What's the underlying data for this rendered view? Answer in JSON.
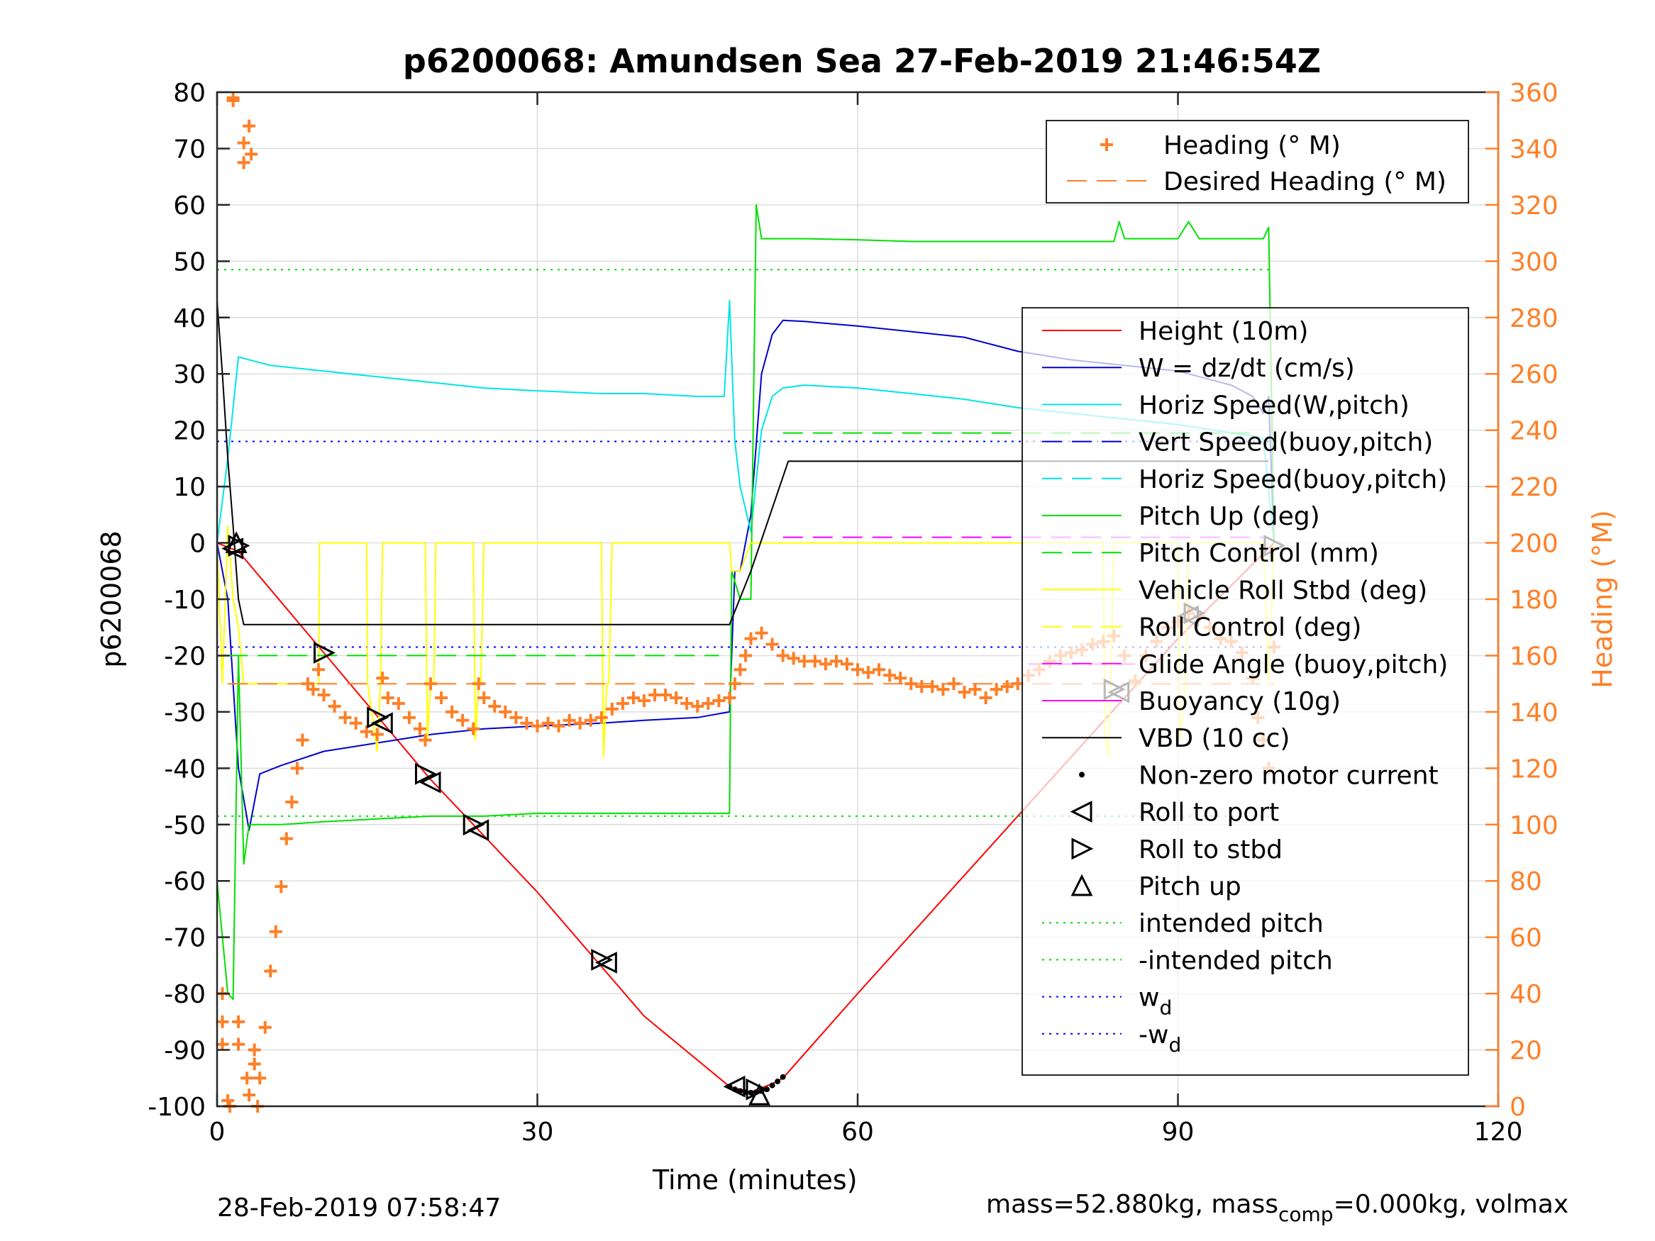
{
  "chart_data": {
    "type": "line",
    "title": "p6200068: Amundsen Sea 27-Feb-2019 21:46:54Z",
    "xlabel": "Time (minutes)",
    "ylabel": "p6200068",
    "y2label": "Heading (°M)",
    "xlim": [
      0,
      120
    ],
    "ylim": [
      -100,
      80
    ],
    "y2lim": [
      0,
      360
    ],
    "x_ticks": [
      0,
      30,
      60,
      90,
      120
    ],
    "y_ticks": [
      80,
      70,
      60,
      50,
      40,
      30,
      20,
      10,
      0,
      -10,
      -20,
      -30,
      -40,
      -50,
      -60,
      -70,
      -80,
      -90,
      -100
    ],
    "y2_ticks": [
      360,
      340,
      320,
      300,
      280,
      260,
      240,
      220,
      200,
      180,
      160,
      140,
      120,
      100,
      80,
      60,
      40,
      20,
      0
    ],
    "grid": true,
    "footer_left": "28-Feb-2019 07:58:47",
    "footer_right": {
      "p1": "mass=52.880kg, mass",
      "sub": "comp",
      "p2": "=0.000kg, volmax"
    },
    "legend_heading": [
      {
        "label": "Heading (° M)",
        "color": "#ff7f27",
        "marker": "plus"
      },
      {
        "label": "Desired Heading (° M)",
        "color": "#ff7f27",
        "style": "dashed"
      }
    ],
    "legend_main": [
      {
        "label": "Height (10m)",
        "color": "#ff0000",
        "style": "solid"
      },
      {
        "label": "W = dz/dt (cm/s)",
        "color": "#0000cc",
        "style": "solid"
      },
      {
        "label": "Horiz Speed(W,pitch)",
        "color": "#00e5e5",
        "style": "solid"
      },
      {
        "label": "Vert Speed(buoy,pitch)",
        "color": "#0000cc",
        "style": "dashed"
      },
      {
        "label": "Horiz Speed(buoy,pitch)",
        "color": "#00e5e5",
        "style": "dashed"
      },
      {
        "label": "Pitch Up (deg)",
        "color": "#00e000",
        "style": "solid"
      },
      {
        "label": "Pitch Control (mm)",
        "color": "#00e000",
        "style": "dashed"
      },
      {
        "label": "Vehicle Roll Stbd (deg)",
        "color": "#ffff00",
        "style": "solid"
      },
      {
        "label": "Roll Control (deg)",
        "color": "#ffff00",
        "style": "dashed"
      },
      {
        "label": "Glide Angle (buoy,pitch)",
        "color": "#ff00ff",
        "style": "dashed"
      },
      {
        "label": "Buoyancy (10g)",
        "color": "#ff00ff",
        "style": "solid"
      },
      {
        "label": "VBD (10 cc)",
        "color": "#000000",
        "style": "solid"
      },
      {
        "label": "Non-zero motor current",
        "color": "#000000",
        "marker": "dot"
      },
      {
        "label": "Roll to port",
        "color": "#000000",
        "marker": "tri-left"
      },
      {
        "label": "Roll to stbd",
        "color": "#000000",
        "marker": "tri-right"
      },
      {
        "label": "Pitch up",
        "color": "#000000",
        "marker": "tri-up"
      },
      {
        "label": "intended pitch",
        "color": "#00e000",
        "style": "dotted"
      },
      {
        "label": "-intended pitch",
        "color": "#00e000",
        "style": "dotted"
      },
      {
        "label": "w",
        "sub": "d",
        "color": "#0000ff",
        "style": "dotted"
      },
      {
        "label": "-w",
        "sub": "d",
        "color": "#0000ff",
        "style": "dotted"
      }
    ],
    "series": [
      {
        "name": "Height (10m)",
        "color": "#ff0000",
        "style": "solid",
        "axis": "left",
        "x": [
          0,
          2,
          10,
          20,
          30,
          40,
          48,
          50,
          52,
          53,
          60,
          70,
          80,
          90,
          99
        ],
        "y": [
          0,
          -1.5,
          -19.5,
          -42,
          -62,
          -84,
          -96.5,
          -97.5,
          -96,
          -95,
          -80,
          -59,
          -38,
          -17,
          0
        ]
      },
      {
        "name": "W = dz/dt (cm/s)",
        "color": "#0000cc",
        "style": "solid",
        "axis": "left",
        "x": [
          0,
          1,
          2,
          3,
          4,
          6,
          10,
          15,
          20,
          25,
          30,
          36,
          40,
          45,
          48,
          48.5,
          49,
          50,
          51,
          52,
          53,
          55,
          60,
          65,
          70,
          75,
          80,
          85,
          90,
          95,
          97,
          98,
          98.5,
          99
        ],
        "y": [
          0,
          -10,
          -40,
          -51,
          -41,
          -39.5,
          -37,
          -35.5,
          -34,
          -33,
          -32.5,
          -32,
          -31.5,
          -31,
          -30,
          -5,
          -5,
          5,
          30,
          37,
          39.5,
          39.3,
          38.5,
          37.5,
          36.5,
          34,
          32.5,
          31.5,
          30.5,
          28,
          26,
          23,
          26,
          0
        ]
      },
      {
        "name": "Horiz Speed(W,pitch)",
        "color": "#00e5e5",
        "style": "solid",
        "axis": "left",
        "x": [
          0,
          1,
          2,
          3,
          5,
          10,
          15,
          20,
          25,
          30,
          36,
          40,
          45,
          47.5,
          48,
          48.5,
          49,
          50,
          51,
          52,
          53,
          55,
          60,
          65,
          70,
          75,
          80,
          85,
          90,
          95,
          97,
          98,
          99
        ],
        "y": [
          0,
          15,
          33,
          32.5,
          31.5,
          30.5,
          29.5,
          28.5,
          27.5,
          27,
          26.5,
          26.5,
          26,
          26,
          43,
          18,
          10,
          2,
          20,
          26,
          27.5,
          28,
          27.5,
          26.5,
          25.5,
          24,
          23,
          22,
          21,
          19.5,
          19,
          18.5,
          0
        ]
      },
      {
        "name": "Pitch Up (deg)",
        "color": "#00e000",
        "style": "solid",
        "axis": "left",
        "x": [
          0,
          1,
          1.5,
          2,
          2.5,
          3,
          4,
          6,
          10,
          15,
          20,
          25,
          30,
          36,
          40,
          45,
          48,
          48.2,
          49,
          50,
          50.5,
          51,
          52,
          55,
          60,
          65,
          70,
          75,
          80,
          84,
          84.5,
          85,
          90,
          91,
          92,
          95,
          98,
          98.5,
          99
        ],
        "y": [
          -60,
          -80,
          -81,
          -20,
          -57,
          -50,
          -50,
          -50,
          -49.5,
          -49,
          -48.5,
          -48.5,
          -48,
          -48,
          -48,
          -48,
          -48,
          -5,
          -10,
          -10,
          60,
          54,
          54,
          54,
          53.8,
          53.5,
          53.5,
          53.5,
          53.5,
          53.5,
          57,
          54,
          54,
          57,
          54,
          54,
          54,
          56,
          0
        ]
      },
      {
        "name": "Vehicle Roll Stbd (deg)",
        "color": "#ffff00",
        "style": "solid",
        "axis": "left",
        "x": [
          0,
          0.5,
          1,
          1.5,
          2,
          2.5,
          3,
          9.5,
          9.6,
          14,
          14.1,
          15,
          15.3,
          15.5,
          19.5,
          19.7,
          20,
          20.3,
          20.5,
          24,
          24.2,
          24.5,
          24.7,
          25,
          36,
          36.2,
          36.5,
          36.7,
          37,
          48,
          48.2,
          49,
          50,
          51,
          60,
          70,
          80,
          83,
          83.2,
          83.5,
          83.7,
          84,
          90,
          90.2,
          90.5,
          90.7,
          91,
          98,
          98.5,
          99
        ],
        "y": [
          0,
          -25,
          3,
          -10,
          -15,
          -25,
          -25,
          -25,
          0,
          0,
          -25,
          -37,
          -25,
          0,
          0,
          -35,
          -25,
          -25,
          0,
          0,
          -35,
          -25,
          -25,
          0,
          0,
          -38,
          -25,
          -25,
          0,
          0,
          -5,
          -5,
          0,
          0,
          0,
          0,
          0,
          0,
          -35,
          -38,
          -25,
          0,
          0,
          -35,
          -30,
          -25,
          0,
          0,
          -25,
          0
        ]
      },
      {
        "name": "Roll Control (deg)",
        "color": "#ffff00",
        "style": "dashed",
        "axis": "left",
        "x": [
          2,
          9.5
        ],
        "y": [
          -25,
          -25
        ]
      },
      {
        "name": "VBD (10 cc)",
        "color": "#000000",
        "style": "solid",
        "axis": "left",
        "x": [
          0,
          0.5,
          1,
          1.5,
          2,
          2.5,
          48,
          50,
          53.5,
          98,
          98.5
        ],
        "y": [
          43,
          30,
          15,
          3,
          -10,
          -14.5,
          -14.5,
          -5,
          14.5,
          14.5,
          14.5
        ]
      },
      {
        "name": "Pitch Control (mm) (dive)",
        "color": "#00e000",
        "style": "dashed",
        "axis": "left",
        "x": [
          1,
          47
        ],
        "y": [
          -20,
          -20
        ]
      },
      {
        "name": "Pitch Control (mm) (climb)",
        "color": "#00e000",
        "style": "dashed",
        "axis": "left",
        "x": [
          53,
          97
        ],
        "y": [
          19.5,
          19.5
        ]
      },
      {
        "name": "Buoyancy (10g) (climb)",
        "color": "#ff00ff",
        "style": "dashed",
        "axis": "left",
        "x": [
          53,
          98
        ],
        "y": [
          1,
          1
        ]
      },
      {
        "name": "Buoyancy (10g) (dive)",
        "color": "#ff00ff",
        "style": "dashed",
        "axis": "left",
        "x": [
          76,
          86
        ],
        "y": [
          -21.5,
          -21.5
        ]
      },
      {
        "name": "Desired Heading (° M)",
        "color": "#ff7f27",
        "style": "dashed",
        "axis": "right",
        "x": [
          1,
          99
        ],
        "y": [
          150,
          150
        ]
      }
    ],
    "reference_lines": [
      {
        "name": "intended pitch",
        "color": "#00e000",
        "style": "dotted",
        "y": 48.5,
        "x": [
          0,
          99
        ]
      },
      {
        "name": "-intended pitch",
        "color": "#00e000",
        "style": "dotted",
        "y": -48.5,
        "x": [
          0,
          99
        ]
      },
      {
        "name": "w_d",
        "color": "#0000ff",
        "style": "dotted",
        "y": 18,
        "x": [
          0,
          99
        ]
      },
      {
        "name": "-w_d",
        "color": "#0000ff",
        "style": "dotted",
        "y": -18.5,
        "x": [
          0,
          99
        ]
      }
    ],
    "heading_points": {
      "x": [
        0.5,
        0.5,
        0.5,
        1,
        1.2,
        1.5,
        1.5,
        2,
        2,
        2.5,
        2.5,
        2.8,
        3,
        3,
        3.2,
        3.5,
        3.5,
        3.8,
        4,
        4.5,
        5,
        5.5,
        6,
        6.5,
        7,
        7.5,
        8,
        8.5,
        9,
        9.5,
        10,
        11,
        12,
        13,
        14,
        15,
        15.5,
        16,
        17,
        18,
        19,
        19.5,
        20,
        21,
        22,
        23,
        24,
        24.5,
        25,
        26,
        27,
        28,
        29,
        30,
        31,
        32,
        33,
        34,
        35,
        36,
        37,
        38,
        39,
        40,
        41,
        42,
        43,
        44,
        45,
        46,
        47,
        48,
        48.5,
        49,
        49.5,
        50,
        51,
        52,
        53,
        54,
        55,
        56,
        57,
        58,
        59,
        60,
        61,
        62,
        63,
        64,
        65,
        66,
        67,
        68,
        69,
        70,
        71,
        72,
        73,
        74,
        75,
        76,
        77,
        78,
        79,
        80,
        81,
        82,
        83,
        84,
        85,
        86,
        87,
        88,
        89,
        90,
        91,
        92,
        93,
        94,
        95,
        96,
        97,
        97.5,
        98,
        98.5,
        99
      ],
      "y": [
        40,
        30,
        22,
        2,
        0,
        358,
        357,
        22,
        30,
        342,
        335,
        10,
        348,
        4,
        338,
        20,
        15,
        0,
        10,
        28,
        48,
        62,
        78,
        95,
        108,
        120,
        130,
        150,
        148,
        155,
        146,
        142,
        138,
        136,
        133,
        132,
        152,
        145,
        143,
        138,
        134,
        130,
        150,
        145,
        140,
        137,
        134,
        150,
        145,
        142,
        140,
        138,
        136,
        135,
        136,
        135,
        137,
        136,
        137,
        138,
        141,
        143,
        145,
        144,
        146,
        146,
        145,
        143,
        142,
        143,
        144,
        145,
        150,
        155,
        160,
        166,
        168,
        164,
        160,
        159,
        158,
        158,
        157,
        158,
        157,
        155,
        154,
        155,
        153,
        152,
        150,
        149,
        149,
        148,
        150,
        147,
        148,
        145,
        148,
        149,
        150,
        153,
        155,
        158,
        160,
        161,
        162,
        164,
        165,
        167,
        160,
        151,
        160,
        165,
        170,
        172,
        175,
        174,
        170,
        166,
        165,
        161,
        152,
        138,
        130,
        120,
        163
      ]
    },
    "markers": {
      "roll_to_port": {
        "x": [
          1.5,
          15.5,
          20,
          24.5,
          36.5,
          48.5,
          91,
          84.5
        ],
        "y": [
          -1,
          -32,
          -42.5,
          -51,
          -74.5,
          -96.5,
          -13,
          -26.5
        ]
      },
      "roll_to_stbd": {
        "x": [
          2,
          10,
          15,
          19.5,
          24,
          36,
          50.5,
          91.5,
          84,
          99
        ],
        "y": [
          -0.5,
          -19.5,
          -31,
          -41,
          -50,
          -74,
          -97,
          -12.5,
          -26,
          -0.5
        ]
      },
      "pitch_up": {
        "x": [
          1.8,
          50.8
        ],
        "y": [
          0,
          -98
        ]
      },
      "motor_current": {
        "x": [
          48,
          48.5,
          49,
          49.5,
          50,
          50.5,
          51,
          51.5,
          52,
          52.5,
          53
        ],
        "y": [
          -96.5,
          -97,
          -97.3,
          -97.5,
          -97.6,
          -97.5,
          -97.3,
          -97,
          -96.3,
          -95.6,
          -94.8
        ]
      }
    }
  }
}
